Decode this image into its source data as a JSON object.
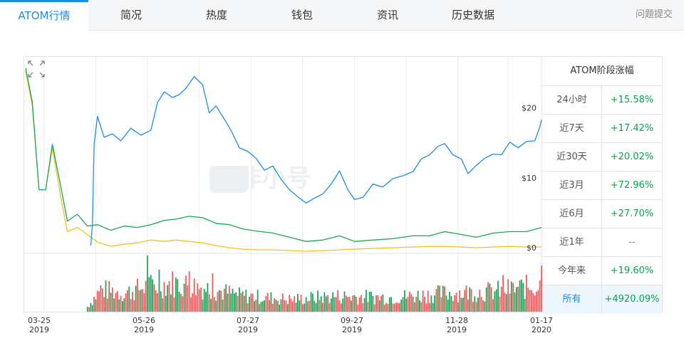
{
  "tabs": [
    {
      "label": "ATOM行情",
      "active": true
    },
    {
      "label": "简况"
    },
    {
      "label": "热度"
    },
    {
      "label": "钱包"
    },
    {
      "label": "资讯"
    },
    {
      "label": "历史数据"
    }
  ],
  "feedback_label": "问题提交",
  "watermark": "非小号",
  "perf_table": {
    "title": "ATOM阶段涨幅",
    "rows": [
      {
        "label": "24小时",
        "value": "+15.58%",
        "trend": "up"
      },
      {
        "label": "近7天",
        "value": "+17.42%",
        "trend": "up"
      },
      {
        "label": "近30天",
        "value": "+20.02%",
        "trend": "up"
      },
      {
        "label": "近3月",
        "value": "+72.96%",
        "trend": "up"
      },
      {
        "label": "近6月",
        "value": "+27.70%",
        "trend": "up"
      },
      {
        "label": "近1年",
        "value": "--",
        "trend": "flat"
      },
      {
        "label": "今年来",
        "value": "+19.60%",
        "trend": "up"
      },
      {
        "label": "所有",
        "value": "+4920.09%",
        "trend": "up",
        "selected": true
      }
    ]
  },
  "colors": {
    "price": "#1a8fe3",
    "series_green": "#1aa558",
    "series_yellow": "#f2c21b",
    "volume_up": "#1aa558",
    "volume_down": "#f05a5a",
    "accent": "#1a8fe3"
  },
  "chart_data": {
    "type": "line",
    "x_tick_labels": [
      {
        "day": "03-25",
        "year": "2019"
      },
      {
        "day": "05-26",
        "year": "2019"
      },
      {
        "day": "07-27",
        "year": "2019"
      },
      {
        "day": "09-27",
        "year": "2019"
      },
      {
        "day": "11-28",
        "year": "2019"
      },
      {
        "day": "01-17",
        "year": "2020"
      }
    ],
    "x_range": [
      "2019-03-14",
      "2020-01-17"
    ],
    "y_ticks": [
      {
        "value": 0,
        "label": "$0"
      },
      {
        "value": 10,
        "label": "$10"
      },
      {
        "value": 20,
        "label": "$20"
      }
    ],
    "ylim": [
      0,
      28
    ],
    "series": [
      {
        "key": "price",
        "points": [
          [
            "2019-04-22",
            1.0
          ],
          [
            "2019-04-23",
            4.0
          ],
          [
            "2019-04-24",
            15.5
          ],
          [
            "2019-04-26",
            19.5
          ],
          [
            "2019-04-30",
            16.5
          ],
          [
            "2019-05-05",
            17.0
          ],
          [
            "2019-05-10",
            16.0
          ],
          [
            "2019-05-16",
            17.8
          ],
          [
            "2019-05-22",
            16.8
          ],
          [
            "2019-05-28",
            17.5
          ],
          [
            "2019-06-01",
            21.5
          ],
          [
            "2019-06-05",
            23.0
          ],
          [
            "2019-06-10",
            22.2
          ],
          [
            "2019-06-14",
            22.6
          ],
          [
            "2019-06-18",
            23.5
          ],
          [
            "2019-06-23",
            25.2
          ],
          [
            "2019-06-28",
            24.0
          ],
          [
            "2019-07-02",
            20.0
          ],
          [
            "2019-07-06",
            21.0
          ],
          [
            "2019-07-10",
            19.5
          ],
          [
            "2019-07-15",
            17.5
          ],
          [
            "2019-07-20",
            15.0
          ],
          [
            "2019-07-25",
            14.5
          ],
          [
            "2019-07-30",
            13.5
          ],
          [
            "2019-08-04",
            11.8
          ],
          [
            "2019-08-09",
            12.4
          ],
          [
            "2019-08-14",
            10.5
          ],
          [
            "2019-08-19",
            9.0
          ],
          [
            "2019-08-24",
            8.0
          ],
          [
            "2019-08-29",
            7.1
          ],
          [
            "2019-09-03",
            7.8
          ],
          [
            "2019-09-08",
            8.4
          ],
          [
            "2019-09-13",
            9.8
          ],
          [
            "2019-09-18",
            11.7
          ],
          [
            "2019-09-23",
            9.0
          ],
          [
            "2019-09-27",
            7.6
          ],
          [
            "2019-10-02",
            7.9
          ],
          [
            "2019-10-08",
            9.8
          ],
          [
            "2019-10-14",
            9.4
          ],
          [
            "2019-10-20",
            10.6
          ],
          [
            "2019-10-26",
            11.0
          ],
          [
            "2019-11-01",
            11.6
          ],
          [
            "2019-11-06",
            13.4
          ],
          [
            "2019-11-11",
            14.0
          ],
          [
            "2019-11-16",
            15.2
          ],
          [
            "2019-11-20",
            15.6
          ],
          [
            "2019-11-25",
            14.0
          ],
          [
            "2019-11-30",
            13.4
          ],
          [
            "2019-12-04",
            11.3
          ],
          [
            "2019-12-09",
            12.5
          ],
          [
            "2019-12-14",
            13.5
          ],
          [
            "2019-12-19",
            14.1
          ],
          [
            "2019-12-24",
            14.0
          ],
          [
            "2019-12-29",
            15.8
          ],
          [
            "2020-01-03",
            15.0
          ],
          [
            "2020-01-08",
            15.9
          ],
          [
            "2020-01-13",
            16.0
          ],
          [
            "2020-01-16",
            18.0
          ],
          [
            "2020-01-17",
            19.0
          ]
        ]
      },
      {
        "key": "green",
        "points": [
          [
            "2019-03-14",
            26.4
          ],
          [
            "2019-03-18",
            21.5
          ],
          [
            "2019-03-22",
            9.0
          ],
          [
            "2019-03-26",
            9.0
          ],
          [
            "2019-03-30",
            15.5
          ],
          [
            "2019-04-04",
            9.5
          ],
          [
            "2019-04-08",
            4.5
          ],
          [
            "2019-04-14",
            5.5
          ],
          [
            "2019-04-20",
            3.8
          ],
          [
            "2019-04-26",
            4.0
          ],
          [
            "2019-05-04",
            3.2
          ],
          [
            "2019-05-12",
            3.8
          ],
          [
            "2019-05-20",
            3.6
          ],
          [
            "2019-05-28",
            4.0
          ],
          [
            "2019-06-05",
            4.6
          ],
          [
            "2019-06-12",
            4.8
          ],
          [
            "2019-06-20",
            5.2
          ],
          [
            "2019-06-28",
            5.0
          ],
          [
            "2019-07-06",
            4.2
          ],
          [
            "2019-07-14",
            4.0
          ],
          [
            "2019-07-22",
            3.4
          ],
          [
            "2019-07-30",
            3.1
          ],
          [
            "2019-08-09",
            2.8
          ],
          [
            "2019-08-19",
            2.2
          ],
          [
            "2019-08-29",
            1.6
          ],
          [
            "2019-09-08",
            1.8
          ],
          [
            "2019-09-18",
            2.4
          ],
          [
            "2019-09-27",
            1.6
          ],
          [
            "2019-10-08",
            1.8
          ],
          [
            "2019-10-20",
            2.0
          ],
          [
            "2019-11-01",
            2.4
          ],
          [
            "2019-11-11",
            2.4
          ],
          [
            "2019-11-20",
            3.0
          ],
          [
            "2019-11-30",
            2.6
          ],
          [
            "2019-12-09",
            2.2
          ],
          [
            "2019-12-19",
            2.8
          ],
          [
            "2019-12-29",
            3.0
          ],
          [
            "2020-01-08",
            3.0
          ],
          [
            "2020-01-17",
            3.6
          ]
        ]
      },
      {
        "key": "yellow",
        "points": [
          [
            "2019-03-14",
            26.0
          ],
          [
            "2019-03-18",
            21.0
          ],
          [
            "2019-03-22",
            9.0
          ],
          [
            "2019-03-26",
            9.0
          ],
          [
            "2019-03-30",
            15.0
          ],
          [
            "2019-04-04",
            8.0
          ],
          [
            "2019-04-08",
            3.0
          ],
          [
            "2019-04-14",
            3.6
          ],
          [
            "2019-04-20",
            2.6
          ],
          [
            "2019-04-26",
            1.5
          ],
          [
            "2019-05-04",
            0.9
          ],
          [
            "2019-05-12",
            1.2
          ],
          [
            "2019-05-20",
            1.4
          ],
          [
            "2019-05-28",
            1.8
          ],
          [
            "2019-06-05",
            1.6
          ],
          [
            "2019-06-12",
            1.8
          ],
          [
            "2019-06-20",
            1.6
          ],
          [
            "2019-06-28",
            1.4
          ],
          [
            "2019-07-06",
            1.0
          ],
          [
            "2019-07-14",
            0.7
          ],
          [
            "2019-07-22",
            0.5
          ],
          [
            "2019-07-30",
            0.4
          ],
          [
            "2019-08-09",
            0.4
          ],
          [
            "2019-08-19",
            0.3
          ],
          [
            "2019-08-29",
            0.2
          ],
          [
            "2019-09-08",
            0.3
          ],
          [
            "2019-09-18",
            0.4
          ],
          [
            "2019-09-27",
            0.5
          ],
          [
            "2019-10-08",
            0.6
          ],
          [
            "2019-10-20",
            0.7
          ],
          [
            "2019-11-01",
            0.8
          ],
          [
            "2019-11-11",
            0.9
          ],
          [
            "2019-11-20",
            0.9
          ],
          [
            "2019-11-30",
            0.8
          ],
          [
            "2019-12-09",
            0.7
          ],
          [
            "2019-12-19",
            0.8
          ],
          [
            "2019-12-29",
            0.9
          ],
          [
            "2020-01-08",
            0.8
          ],
          [
            "2020-01-17",
            0.8
          ]
        ]
      }
    ],
    "volume_envelope": [
      [
        "2019-04-20",
        0.12
      ],
      [
        "2019-04-28",
        0.55
      ],
      [
        "2019-05-12",
        0.45
      ],
      [
        "2019-05-24",
        0.6
      ],
      [
        "2019-06-10",
        0.7
      ],
      [
        "2019-06-28",
        0.6
      ],
      [
        "2019-07-20",
        0.4
      ],
      [
        "2019-08-20",
        0.3
      ],
      [
        "2019-09-15",
        0.38
      ],
      [
        "2019-10-20",
        0.35
      ],
      [
        "2019-11-20",
        0.45
      ],
      [
        "2019-12-20",
        0.5
      ],
      [
        "2020-01-17",
        0.65
      ]
    ],
    "volume_spikes": [
      [
        "2019-05-26",
        1.0
      ],
      [
        "2019-06-02",
        0.75
      ],
      [
        "2019-06-20",
        0.72
      ],
      [
        "2019-07-04",
        0.68
      ],
      [
        "2019-12-25",
        0.65
      ],
      [
        "2020-01-17",
        0.82
      ]
    ]
  }
}
